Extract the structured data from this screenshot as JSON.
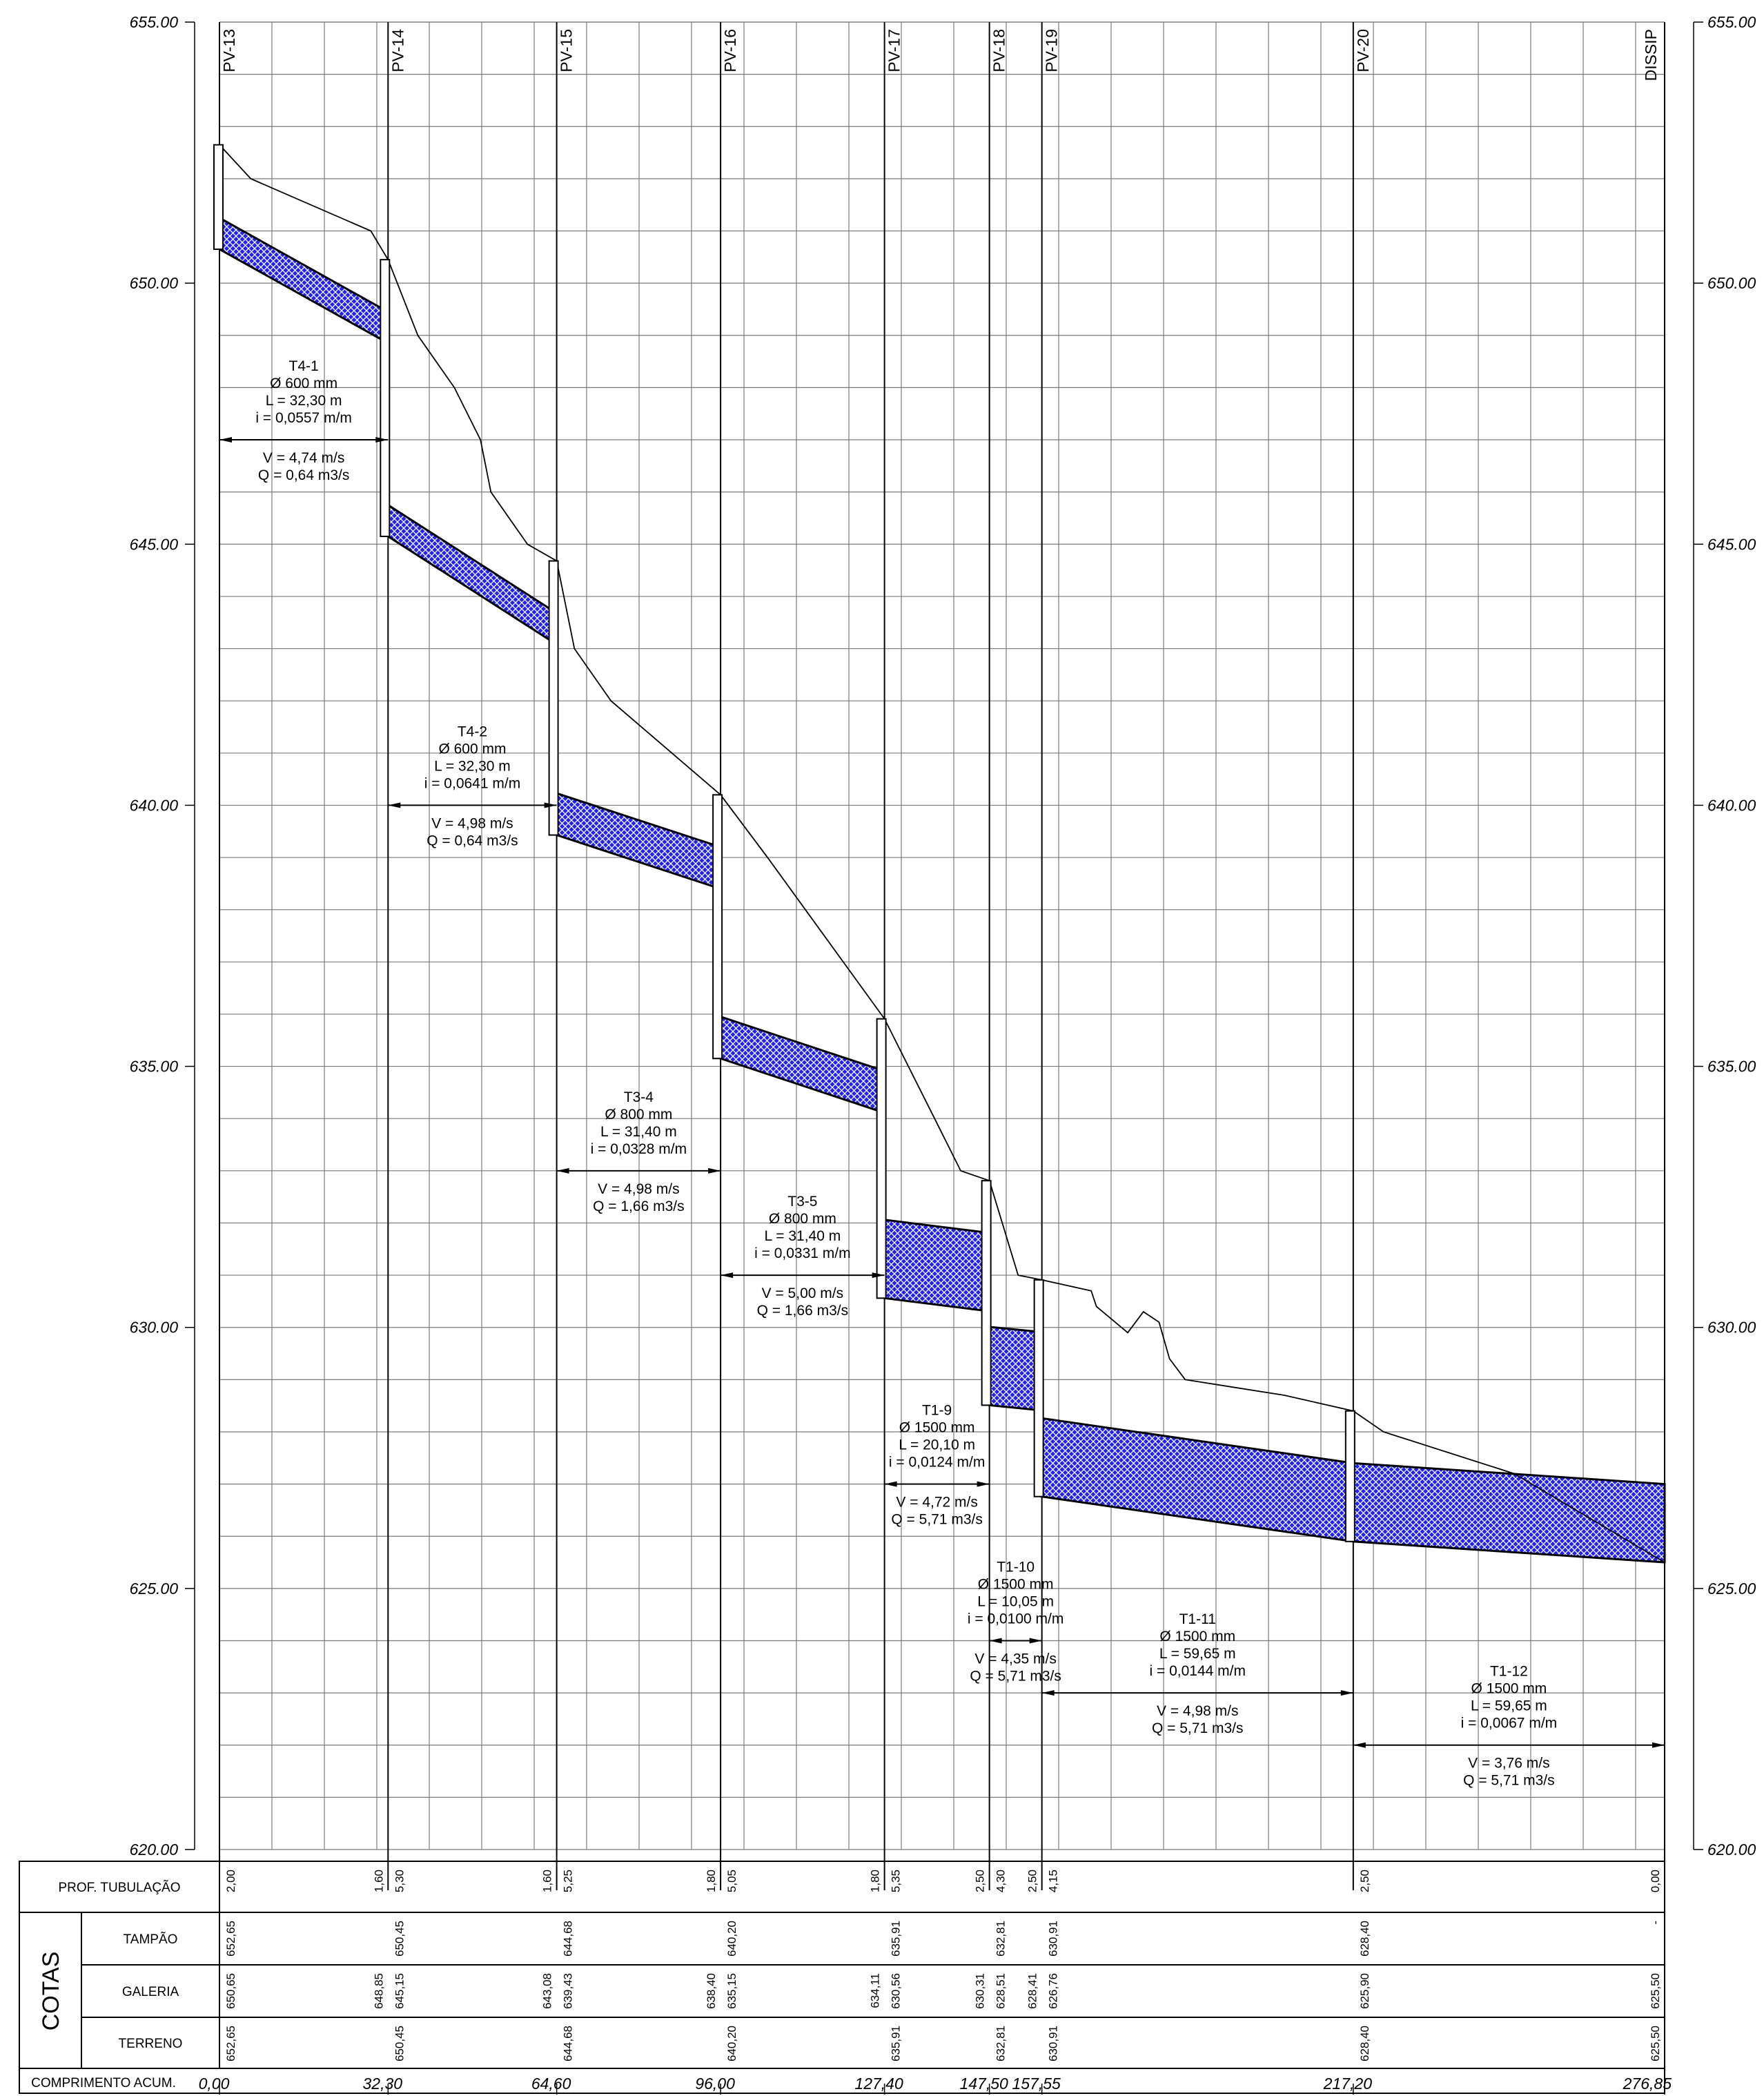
{
  "elevation_axis": {
    "ticks": [
      {
        "value": 655,
        "label": "655.00"
      },
      {
        "value": 650,
        "label": "650.00"
      },
      {
        "value": 645,
        "label": "645.00"
      },
      {
        "value": 640,
        "label": "640.00"
      },
      {
        "value": 635,
        "label": "635.00"
      },
      {
        "value": 630,
        "label": "630.00"
      },
      {
        "value": 625,
        "label": "625.00"
      },
      {
        "value": 620,
        "label": "620.00"
      }
    ]
  },
  "colors": {
    "pipe_fill": "#2222ee",
    "line": "#000000",
    "grid": "#7a7a7a"
  },
  "manholes": [
    {
      "name": "PV-13",
      "station": 0.0,
      "top": 652.65,
      "bottom": 650.65
    },
    {
      "name": "PV-14",
      "station": 32.3,
      "top": 650.45,
      "bottom": 645.15
    },
    {
      "name": "PV-15",
      "station": 64.6,
      "top": 644.68,
      "bottom": 639.43
    },
    {
      "name": "PV-16",
      "station": 96.0,
      "top": 640.2,
      "bottom": 635.15
    },
    {
      "name": "PV-17",
      "station": 127.4,
      "top": 635.91,
      "bottom": 630.56
    },
    {
      "name": "PV-18",
      "station": 147.5,
      "top": 632.81,
      "bottom": 628.51
    },
    {
      "name": "PV-19",
      "station": 157.55,
      "top": 630.91,
      "bottom": 626.76
    },
    {
      "name": "PV-20",
      "station": 217.2,
      "top": 628.4,
      "bottom": 625.9
    },
    {
      "name": "DISSIP",
      "station": 276.85,
      "top": null,
      "bottom": null
    }
  ],
  "pipes": [
    {
      "x0": 0.0,
      "x1": 32.3,
      "inv0": 650.65,
      "inv1": 648.85,
      "d": 0.6
    },
    {
      "x0": 32.3,
      "x1": 64.6,
      "inv0": 645.15,
      "inv1": 643.08,
      "d": 0.6
    },
    {
      "x0": 64.6,
      "x1": 96.0,
      "inv0": 639.43,
      "inv1": 638.4,
      "d": 0.8
    },
    {
      "x0": 96.0,
      "x1": 127.4,
      "inv0": 635.15,
      "inv1": 634.11,
      "d": 0.8
    },
    {
      "x0": 127.4,
      "x1": 147.5,
      "inv0": 630.56,
      "inv1": 630.31,
      "d": 1.5
    },
    {
      "x0": 147.5,
      "x1": 157.55,
      "inv0": 628.51,
      "inv1": 628.41,
      "d": 1.5
    },
    {
      "x0": 157.55,
      "x1": 217.2,
      "inv0": 626.76,
      "inv1": 625.9,
      "d": 1.5
    },
    {
      "x0": 217.2,
      "x1": 276.85,
      "inv0": 625.9,
      "inv1": 625.5,
      "d": 1.5
    }
  ],
  "terrain": [
    [
      0,
      652.65
    ],
    [
      6,
      652.0
    ],
    [
      29,
      651.0
    ],
    [
      32.3,
      650.45
    ],
    [
      38,
      649.0
    ],
    [
      45,
      648.0
    ],
    [
      50,
      647.0
    ],
    [
      52,
      646.0
    ],
    [
      59,
      645.0
    ],
    [
      64.6,
      644.68
    ],
    [
      68,
      643.0
    ],
    [
      75,
      642.0
    ],
    [
      96.0,
      640.2
    ],
    [
      105,
      639.0
    ],
    [
      127.4,
      635.91
    ],
    [
      137,
      634.0
    ],
    [
      142,
      633.0
    ],
    [
      147.5,
      632.81
    ],
    [
      153,
      631.0
    ],
    [
      157.55,
      630.91
    ],
    [
      167,
      630.7
    ],
    [
      168,
      630.4
    ],
    [
      174,
      629.9
    ],
    [
      177,
      630.3
    ],
    [
      180,
      630.1
    ],
    [
      182,
      629.4
    ],
    [
      185,
      629.0
    ],
    [
      204,
      628.7
    ],
    [
      217.2,
      628.4
    ],
    [
      223,
      628.0
    ],
    [
      248,
      627.2
    ],
    [
      276.85,
      625.5
    ]
  ],
  "segments": [
    {
      "id": "T4-1",
      "diam": "Ø 600 mm",
      "len": "L = 32,30 m",
      "slope": "i = 0,0557 m/m",
      "vel": "V = 4,74 m/s",
      "flow": "Q = 0,64 m3/s",
      "x0": 0.0,
      "x1": 32.3,
      "arrow_elev": 647.0
    },
    {
      "id": "T4-2",
      "diam": "Ø 600 mm",
      "len": "L = 32,30 m",
      "slope": "i = 0,0641 m/m",
      "vel": "V = 4,98 m/s",
      "flow": "Q = 0,64 m3/s",
      "x0": 32.3,
      "x1": 64.6,
      "arrow_elev": 640.0
    },
    {
      "id": "T3-4",
      "diam": "Ø 800 mm",
      "len": "L = 31,40 m",
      "slope": "i = 0,0328 m/m",
      "vel": "V = 4,98 m/s",
      "flow": "Q = 1,66 m3/s",
      "x0": 64.6,
      "x1": 96.0,
      "arrow_elev": 633.0
    },
    {
      "id": "T3-5",
      "diam": "Ø 800 mm",
      "len": "L = 31,40 m",
      "slope": "i = 0,0331 m/m",
      "vel": "V = 5,00 m/s",
      "flow": "Q = 1,66 m3/s",
      "x0": 96.0,
      "x1": 127.4,
      "arrow_elev": 631.0
    },
    {
      "id": "T1-9",
      "diam": "Ø 1500 mm",
      "len": "L = 20,10 m",
      "slope": "i = 0,0124 m/m",
      "vel": "V = 4,72 m/s",
      "flow": "Q = 5,71 m3/s",
      "x0": 127.4,
      "x1": 147.5,
      "arrow_elev": 627.0
    },
    {
      "id": "T1-10",
      "diam": "Ø 1500 mm",
      "len": "L = 10,05 m",
      "slope": "i = 0,0100 m/m",
      "vel": "V = 4,35 m/s",
      "flow": "Q = 5,71 m3/s",
      "x0": 147.5,
      "x1": 157.55,
      "arrow_elev": 624.0
    },
    {
      "id": "T1-11",
      "diam": "Ø 1500 mm",
      "len": "L = 59,65 m",
      "slope": "i = 0,0144 m/m",
      "vel": "V = 4,98 m/s",
      "flow": "Q = 5,71 m3/s",
      "x0": 157.55,
      "x1": 217.2,
      "arrow_elev": 623.0
    },
    {
      "id": "T1-12",
      "diam": "Ø 1500 mm",
      "len": "L = 59,65 m",
      "slope": "i = 0,0067 m/m",
      "vel": "V = 3,76 m/s",
      "flow": "Q = 5,71 m3/s",
      "x0": 217.2,
      "x1": 276.85,
      "arrow_elev": 622.0
    }
  ],
  "table": {
    "cotas_title": "COTAS",
    "rows": [
      {
        "label": "PROF. TUBULAÇÃO",
        "values": [
          {
            "station": 0.0,
            "side": "R",
            "text": "2,00"
          },
          {
            "station": 32.3,
            "side": "L",
            "text": "1,60"
          },
          {
            "station": 32.3,
            "side": "R",
            "text": "5,30"
          },
          {
            "station": 64.6,
            "side": "L",
            "text": "1,60"
          },
          {
            "station": 64.6,
            "side": "R",
            "text": "5,25"
          },
          {
            "station": 96.0,
            "side": "L",
            "text": "1,80"
          },
          {
            "station": 96.0,
            "side": "R",
            "text": "5,05"
          },
          {
            "station": 127.4,
            "side": "L",
            "text": "1,80"
          },
          {
            "station": 127.4,
            "side": "R",
            "text": "5,35"
          },
          {
            "station": 147.5,
            "side": "L",
            "text": "2,50"
          },
          {
            "station": 147.5,
            "side": "R",
            "text": "4,30"
          },
          {
            "station": 157.55,
            "side": "L",
            "text": "2,50"
          },
          {
            "station": 157.55,
            "side": "R",
            "text": "4,15"
          },
          {
            "station": 217.2,
            "side": "R",
            "text": "2,50"
          },
          {
            "station": 276.85,
            "side": "L",
            "text": "0,00"
          }
        ]
      },
      {
        "label": "TAMPÃO",
        "values": [
          {
            "station": 0.0,
            "side": "R",
            "text": "652,65"
          },
          {
            "station": 32.3,
            "side": "R",
            "text": "650,45"
          },
          {
            "station": 64.6,
            "side": "R",
            "text": "644,68"
          },
          {
            "station": 96.0,
            "side": "R",
            "text": "640,20"
          },
          {
            "station": 127.4,
            "side": "R",
            "text": "635,91"
          },
          {
            "station": 147.5,
            "side": "R",
            "text": "632,81"
          },
          {
            "station": 157.55,
            "side": "R",
            "text": "630,91"
          },
          {
            "station": 217.2,
            "side": "R",
            "text": "628,40"
          },
          {
            "station": 276.85,
            "side": "L",
            "text": "-"
          }
        ]
      },
      {
        "label": "GALERIA",
        "values": [
          {
            "station": 0.0,
            "side": "R",
            "text": "650,65"
          },
          {
            "station": 32.3,
            "side": "L",
            "text": "648,85"
          },
          {
            "station": 32.3,
            "side": "R",
            "text": "645,15"
          },
          {
            "station": 64.6,
            "side": "L",
            "text": "643,08"
          },
          {
            "station": 64.6,
            "side": "R",
            "text": "639,43"
          },
          {
            "station": 96.0,
            "side": "L",
            "text": "638,40"
          },
          {
            "station": 96.0,
            "side": "R",
            "text": "635,15"
          },
          {
            "station": 127.4,
            "side": "L",
            "text": "634,11"
          },
          {
            "station": 127.4,
            "side": "R",
            "text": "630,56"
          },
          {
            "station": 147.5,
            "side": "L",
            "text": "630,31"
          },
          {
            "station": 147.5,
            "side": "R",
            "text": "628,51"
          },
          {
            "station": 157.55,
            "side": "L",
            "text": "628,41"
          },
          {
            "station": 157.55,
            "side": "R",
            "text": "626,76"
          },
          {
            "station": 217.2,
            "side": "R",
            "text": "625,90"
          },
          {
            "station": 276.85,
            "side": "L",
            "text": "625,50"
          }
        ]
      },
      {
        "label": "TERRENO",
        "values": [
          {
            "station": 0.0,
            "side": "R",
            "text": "652,65"
          },
          {
            "station": 32.3,
            "side": "R",
            "text": "650,45"
          },
          {
            "station": 64.6,
            "side": "R",
            "text": "644,68"
          },
          {
            "station": 96.0,
            "side": "R",
            "text": "640,20"
          },
          {
            "station": 127.4,
            "side": "R",
            "text": "635,91"
          },
          {
            "station": 147.5,
            "side": "R",
            "text": "632,81"
          },
          {
            "station": 157.55,
            "side": "R",
            "text": "630,91"
          },
          {
            "station": 217.2,
            "side": "R",
            "text": "628,40"
          },
          {
            "station": 276.85,
            "side": "L",
            "text": "625,50"
          }
        ]
      }
    ],
    "chainage": {
      "label": "COMPRIMENTO ACUM.",
      "values": [
        {
          "station": 0.0,
          "text": "0,00"
        },
        {
          "station": 32.3,
          "text": "32,30"
        },
        {
          "station": 64.6,
          "text": "64,60"
        },
        {
          "station": 96.0,
          "text": "96,00"
        },
        {
          "station": 127.4,
          "text": "127,40"
        },
        {
          "station": 147.5,
          "text": "147,50"
        },
        {
          "station": 157.55,
          "text": "157,55"
        },
        {
          "station": 217.2,
          "text": "217,20"
        },
        {
          "station": 276.85,
          "text": "276,85"
        }
      ]
    }
  }
}
